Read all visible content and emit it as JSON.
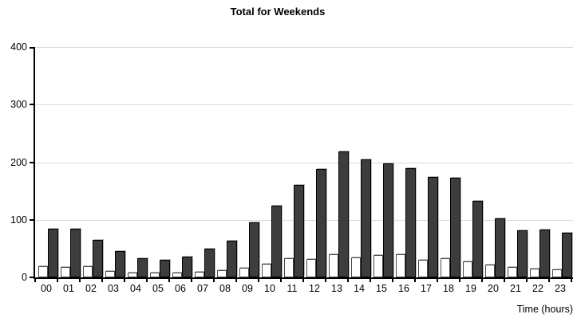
{
  "chart_data": {
    "type": "bar",
    "title": "Total for Weekends",
    "xlabel": "Time (hours)",
    "ylabel": "",
    "categories": [
      "00",
      "01",
      "02",
      "03",
      "04",
      "05",
      "06",
      "07",
      "08",
      "09",
      "10",
      "11",
      "12",
      "13",
      "14",
      "15",
      "16",
      "17",
      "18",
      "19",
      "20",
      "21",
      "22",
      "23"
    ],
    "series": [
      {
        "name": "white-bars",
        "color": "#ffffff",
        "border_color": "#4a4a4a",
        "values": [
          20,
          18,
          19,
          11,
          8,
          8,
          8,
          9,
          12,
          16,
          24,
          33,
          32,
          40,
          35,
          39,
          40,
          31,
          33,
          28,
          22,
          18,
          15,
          14
        ]
      },
      {
        "name": "dark-bars",
        "color": "#3d3d3d",
        "border_color": "#000000",
        "values": [
          85,
          85,
          65,
          46,
          33,
          30,
          36,
          50,
          63,
          95,
          125,
          160,
          188,
          219,
          205,
          198,
          189,
          175,
          173,
          133,
          103,
          81,
          83,
          77
        ]
      }
    ],
    "ylim": [
      0,
      400
    ],
    "yticks": [
      0,
      100,
      200,
      300,
      400
    ],
    "grid": true,
    "legend": "none",
    "gridline_color": "#d9d9d9",
    "axis_color": "#000000"
  }
}
